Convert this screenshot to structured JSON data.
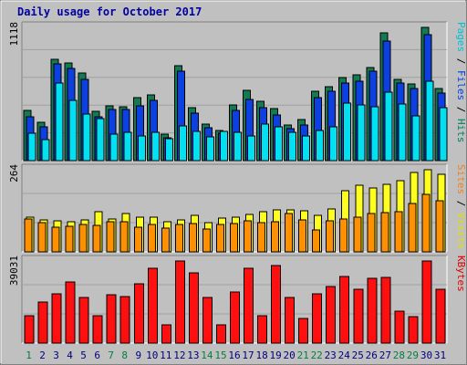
{
  "chart_data": {
    "type": "bar",
    "title": "Daily usage for October 2017",
    "days": [
      "1",
      "2",
      "3",
      "4",
      "5",
      "6",
      "7",
      "8",
      "9",
      "10",
      "11",
      "12",
      "13",
      "14",
      "15",
      "16",
      "17",
      "18",
      "19",
      "20",
      "21",
      "22",
      "23",
      "24",
      "25",
      "26",
      "27",
      "28",
      "29",
      "30",
      "31"
    ],
    "weekend_days": [
      "1",
      "7",
      "8",
      "14",
      "15",
      "21",
      "22",
      "28",
      "29"
    ],
    "panels": [
      {
        "id": "hits",
        "ymax_label": "1118",
        "ylabel_parts": [
          {
            "text": "Pages",
            "color": "#00c0d0"
          },
          {
            "text": " / ",
            "color": "#000000"
          },
          {
            "text": "Files",
            "color": "#0040e0"
          },
          {
            "text": " / ",
            "color": "#000000"
          },
          {
            "text": "Hits",
            "color": "#008060"
          }
        ],
        "series": [
          {
            "name": "Hits",
            "color": "#147a52",
            "values": [
              418,
              319,
              853,
              819,
              737,
              415,
              457,
              455,
              525,
              552,
              222,
              798,
              445,
              305,
              253,
              469,
              587,
              494,
              438,
              298,
              341,
              579,
              622,
              699,
              719,
              782,
              1072,
              685,
              646,
              1118,
              606
            ]
          },
          {
            "name": "Files",
            "color": "#0c40e0",
            "values": [
              370,
              284,
              812,
              776,
              680,
              371,
              430,
              427,
              459,
              509,
              195,
              754,
              396,
              274,
              227,
              421,
              511,
              441,
              382,
              269,
              297,
              532,
              581,
              652,
              670,
              749,
              1004,
              651,
              608,
              1059,
              568
            ]
          },
          {
            "name": "Pages",
            "color": "#00e0f0",
            "values": [
              226,
              174,
              654,
              508,
              393,
              353,
              222,
              238,
              206,
              238,
              180,
              293,
              244,
              196,
              248,
              237,
              209,
              309,
              286,
              240,
              205,
              249,
              282,
              479,
              466,
              453,
              578,
              473,
              375,
              666,
              445
            ]
          }
        ]
      },
      {
        "id": "visits",
        "ymax_label": "264",
        "ylabel_parts": [
          {
            "text": "Sites",
            "color": "#f08020"
          },
          {
            "text": " / ",
            "color": "#000000"
          },
          {
            "text": "Visits",
            "color": "#e0e000"
          }
        ],
        "series": [
          {
            "name": "Visits",
            "color": "#ffff20",
            "values": [
              111,
              103,
              99,
              98,
              102,
              129,
              107,
              122,
              110,
              111,
              98,
              104,
              116,
              95,
              109,
              112,
              121,
              129,
              135,
              136,
              133,
              117,
              138,
              197,
              213,
              205,
              218,
              228,
              256,
              264,
              250
            ]
          },
          {
            "name": "Sites",
            "color": "#ff9000",
            "values": [
              106,
              94,
              78,
              81,
              88,
              86,
              98,
              96,
              79,
              89,
              77,
              88,
              90,
              74,
              88,
              91,
              100,
              94,
              97,
              122,
              103,
              71,
              100,
              106,
              110,
              123,
              126,
              130,
              156,
              186,
              164
            ]
          }
        ]
      },
      {
        "id": "kbytes",
        "ymax_label": "39031",
        "ylabel_parts": [
          {
            "text": "KBytes",
            "color": "#e00000"
          }
        ],
        "series": [
          {
            "name": "KBytes",
            "color": "#ff1010",
            "values": [
              13100,
              19400,
              23500,
              29000,
              21600,
              12800,
              23200,
              22000,
              28400,
              35700,
              8800,
              39031,
              33200,
              21900,
              8800,
              24400,
              35600,
              13100,
              36900,
              21900,
              11700,
              23500,
              26800,
              31800,
              25700,
              30900,
              31100,
              15200,
              12700,
              39031,
              25400
            ]
          }
        ]
      }
    ]
  }
}
